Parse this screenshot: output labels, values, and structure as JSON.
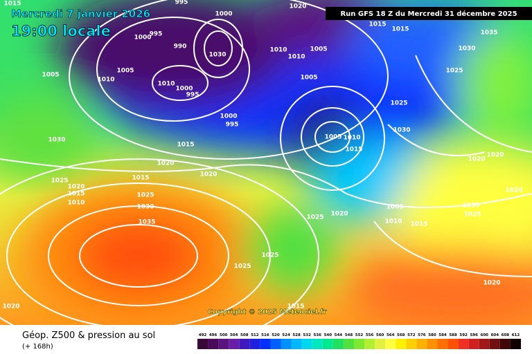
{
  "header": {
    "date": "Mercredi 7 janvier 2026",
    "time": "19:00 locale",
    "run": "Run GFS 18 Z du Mercredi 31 décembre 2025"
  },
  "copyright": "Copyright © 2025 Meteociel.fr",
  "footer": {
    "title": "Géop. Z500 & pression au sol",
    "subtitle": "(+ 168h)"
  },
  "legend": {
    "values": [
      492,
      496,
      500,
      504,
      508,
      512,
      516,
      520,
      524,
      528,
      532,
      536,
      540,
      544,
      548,
      552,
      556,
      560,
      564,
      568,
      572,
      576,
      580,
      584,
      588,
      592,
      596,
      600,
      604,
      608,
      612
    ],
    "colors": [
      "#3a0838",
      "#4a0a5a",
      "#5a1480",
      "#6a1ea8",
      "#4018c0",
      "#2020e0",
      "#0030ff",
      "#0060ff",
      "#0090ff",
      "#00b8ff",
      "#00d8f0",
      "#00e8c0",
      "#00e890",
      "#20e060",
      "#50e040",
      "#80e830",
      "#b0f030",
      "#e0f040",
      "#ffff40",
      "#fff000",
      "#ffd000",
      "#ffb000",
      "#ff9000",
      "#ff7000",
      "#ff5000",
      "#f03020",
      "#d02020",
      "#a01818",
      "#701010",
      "#400808",
      "#100000"
    ]
  },
  "isobar_labels": [
    "1015",
    "995",
    "1000",
    "1020",
    "1015",
    "1015",
    "1035",
    "1030",
    "1025",
    "1000",
    "995",
    "990",
    "1030",
    "1010",
    "1010",
    "1005",
    "1005",
    "1005",
    "1010",
    "1010",
    "1000",
    "995",
    "1005",
    "1025",
    "1000",
    "995",
    "1030",
    "1005",
    "1010",
    "1015",
    "1030",
    "1015",
    "1020",
    "1020",
    "1020",
    "1015",
    "1020",
    "1025",
    "1020",
    "1015",
    "1010",
    "1025",
    "1030",
    "1005",
    "1030",
    "1025",
    "1035",
    "1025",
    "1020",
    "1010",
    "1015",
    "1025",
    "1025",
    "1020",
    "1020",
    "1015",
    "1020"
  ]
}
